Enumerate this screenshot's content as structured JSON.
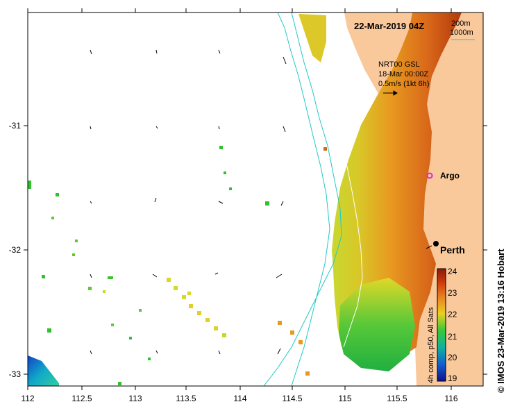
{
  "title": "22-Mar-2019 04Z",
  "depth_legend": {
    "contour_200": "200m",
    "contour_1000": "1000m",
    "contour_color": "#20c8c8"
  },
  "current_legend": {
    "line1": "NRT00 GSL",
    "line2": "18-Mar 00:00Z",
    "line3": "0.5m/s (1kt 6h)"
  },
  "places": {
    "argo_label": "Argo",
    "perth_label": "Perth"
  },
  "axes": {
    "x_ticks": [
      "112",
      "112.5",
      "113",
      "113.5",
      "114",
      "114.5",
      "115",
      "115.5",
      "116"
    ],
    "y_ticks": [
      "-31",
      "-32",
      "-33"
    ]
  },
  "colorbar": {
    "label": "4h comp, p50, All Sats",
    "ticks": [
      "24",
      "23",
      "22",
      "21",
      "20",
      "19"
    ],
    "min": 19,
    "max": 24
  },
  "credit": "© IMOS 23-Mar-2019 13:16 Hobart",
  "colors": {
    "land": "#f9c89b",
    "warm": "#b03a08",
    "mid": "#e48a18",
    "cool": "#d8d424",
    "green": "#30c030"
  }
}
